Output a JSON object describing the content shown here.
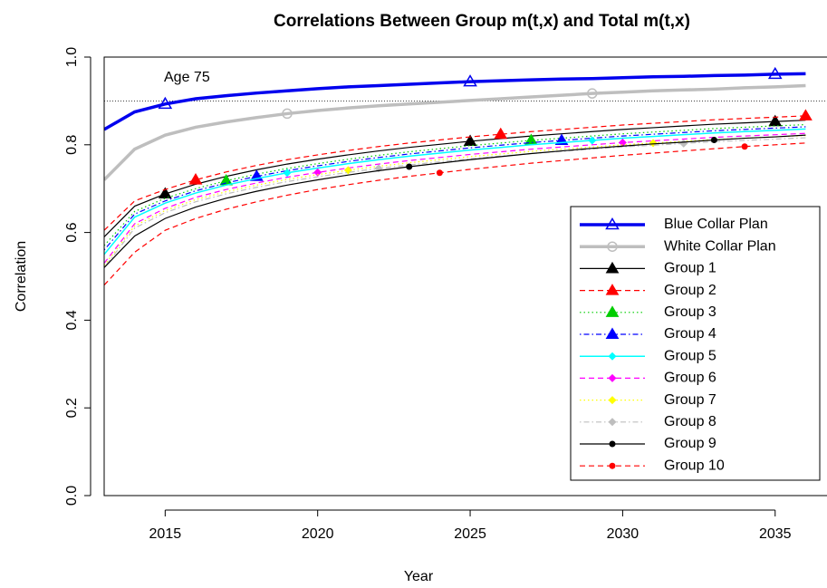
{
  "chart_data": {
    "type": "line",
    "title": "Correlations Between Group m(t,x) and Total m(t,x)",
    "x_label": "Year",
    "y_label": "Correlation",
    "annotation": "Age 75",
    "hline": 0.9,
    "x": [
      2013,
      2014,
      2015,
      2016,
      2017,
      2018,
      2019,
      2020,
      2021,
      2022,
      2023,
      2024,
      2025,
      2026,
      2027,
      2028,
      2029,
      2030,
      2031,
      2032,
      2033,
      2034,
      2035,
      2036
    ],
    "xlim": [
      2013,
      2036.7
    ],
    "ylim": [
      0,
      1
    ],
    "xticks": [
      2015,
      2020,
      2025,
      2030,
      2035
    ],
    "yticks": [
      {
        "value": 0,
        "label": "0.0"
      },
      {
        "value": 0.2,
        "label": "0.2"
      },
      {
        "value": 0.4,
        "label": "0.4"
      },
      {
        "value": 0.6,
        "label": "0.6"
      },
      {
        "value": 0.8,
        "label": "0.8"
      },
      {
        "value": 1,
        "label": "1.0"
      }
    ],
    "legend": "right",
    "series": [
      {
        "name": "Blue Collar Plan",
        "color": "#0000ee",
        "line_style": "solid",
        "line_width": 3.5,
        "marker": "triangle-open",
        "marker_x": [
          2015,
          2025,
          2035
        ],
        "values": [
          0.835,
          0.875,
          0.893,
          0.905,
          0.912,
          0.918,
          0.923,
          0.928,
          0.932,
          0.935,
          0.938,
          0.941,
          0.944,
          0.946,
          0.948,
          0.95,
          0.951,
          0.953,
          0.955,
          0.956,
          0.958,
          0.959,
          0.961,
          0.962
        ]
      },
      {
        "name": "White Collar Plan",
        "color": "#bebebe",
        "line_style": "solid",
        "line_width": 3.5,
        "marker": "circle-open",
        "marker_x": [
          2019,
          2029
        ],
        "values": [
          0.72,
          0.79,
          0.822,
          0.84,
          0.852,
          0.862,
          0.871,
          0.878,
          0.884,
          0.889,
          0.893,
          0.897,
          0.901,
          0.905,
          0.909,
          0.913,
          0.917,
          0.92,
          0.923,
          0.925,
          0.927,
          0.93,
          0.932,
          0.935
        ]
      },
      {
        "name": "Group 1",
        "color": "#000000",
        "line_style": "solid",
        "line_width": 1.2,
        "marker": "triangle",
        "marker_x": [
          2015,
          2025,
          2035
        ],
        "values": [
          0.59,
          0.66,
          0.688,
          0.71,
          0.728,
          0.743,
          0.756,
          0.767,
          0.777,
          0.786,
          0.794,
          0.801,
          0.808,
          0.814,
          0.82,
          0.825,
          0.83,
          0.835,
          0.839,
          0.843,
          0.847,
          0.85,
          0.853,
          0.856
        ]
      },
      {
        "name": "Group 2",
        "color": "#ff0000",
        "line_style": "dashed",
        "line_width": 1.2,
        "marker": "triangle",
        "marker_x": [
          2016,
          2026,
          2036
        ],
        "values": [
          0.605,
          0.672,
          0.698,
          0.72,
          0.738,
          0.753,
          0.766,
          0.777,
          0.787,
          0.796,
          0.804,
          0.811,
          0.818,
          0.824,
          0.83,
          0.835,
          0.84,
          0.845,
          0.849,
          0.853,
          0.857,
          0.86,
          0.863,
          0.866
        ]
      },
      {
        "name": "Group 3",
        "color": "#00cd00",
        "line_style": "dotted",
        "line_width": 1.2,
        "marker": "triangle",
        "marker_x": [
          2017,
          2027
        ],
        "values": [
          0.57,
          0.648,
          0.678,
          0.7,
          0.718,
          0.733,
          0.746,
          0.757,
          0.767,
          0.776,
          0.784,
          0.791,
          0.798,
          0.804,
          0.81,
          0.815,
          0.82,
          0.825,
          0.829,
          0.833,
          0.837,
          0.84,
          0.843,
          0.846
        ]
      },
      {
        "name": "Group 4",
        "color": "#0000ff",
        "line_style": "dotdash",
        "line_width": 1.2,
        "marker": "triangle",
        "marker_x": [
          2018,
          2028
        ],
        "values": [
          0.56,
          0.642,
          0.672,
          0.695,
          0.713,
          0.728,
          0.741,
          0.752,
          0.762,
          0.771,
          0.779,
          0.786,
          0.793,
          0.799,
          0.805,
          0.81,
          0.815,
          0.82,
          0.824,
          0.828,
          0.832,
          0.835,
          0.838,
          0.841
        ]
      },
      {
        "name": "Group 5",
        "color": "#00ffff",
        "line_style": "solid",
        "line_width": 1.5,
        "marker": "diamond",
        "marker_x": [
          2019,
          2029
        ],
        "values": [
          0.55,
          0.635,
          0.667,
          0.69,
          0.708,
          0.723,
          0.736,
          0.747,
          0.757,
          0.766,
          0.774,
          0.781,
          0.788,
          0.794,
          0.8,
          0.805,
          0.81,
          0.815,
          0.819,
          0.823,
          0.827,
          0.83,
          0.833,
          0.836
        ]
      },
      {
        "name": "Group 6",
        "color": "#ff00ff",
        "line_style": "dashed",
        "line_width": 1.2,
        "marker": "diamond",
        "marker_x": [
          2020,
          2030
        ],
        "values": [
          0.53,
          0.62,
          0.655,
          0.68,
          0.698,
          0.713,
          0.726,
          0.737,
          0.747,
          0.756,
          0.764,
          0.771,
          0.778,
          0.784,
          0.79,
          0.795,
          0.8,
          0.805,
          0.809,
          0.813,
          0.817,
          0.82,
          0.823,
          0.826
        ]
      },
      {
        "name": "Group 7",
        "color": "#ffff00",
        "line_style": "dotted",
        "line_width": 1.2,
        "marker": "diamond",
        "marker_x": [
          2021,
          2031
        ],
        "values": [
          0.525,
          0.615,
          0.65,
          0.675,
          0.693,
          0.708,
          0.721,
          0.732,
          0.742,
          0.751,
          0.759,
          0.766,
          0.773,
          0.779,
          0.785,
          0.79,
          0.795,
          0.8,
          0.804,
          0.808,
          0.812,
          0.815,
          0.818,
          0.821
        ]
      },
      {
        "name": "Group 8",
        "color": "#bebebe",
        "line_style": "dotdash",
        "line_width": 1.2,
        "marker": "diamond",
        "marker_x": [
          2022,
          2032
        ],
        "values": [
          0.52,
          0.61,
          0.645,
          0.67,
          0.688,
          0.703,
          0.716,
          0.727,
          0.737,
          0.746,
          0.754,
          0.761,
          0.768,
          0.774,
          0.78,
          0.785,
          0.79,
          0.795,
          0.799,
          0.803,
          0.807,
          0.81,
          0.813,
          0.816
        ]
      },
      {
        "name": "Group 9",
        "color": "#000000",
        "line_style": "solid",
        "line_width": 1.2,
        "marker": "dot",
        "marker_x": [
          2023,
          2033
        ],
        "values": [
          0.52,
          0.592,
          0.632,
          0.658,
          0.678,
          0.694,
          0.708,
          0.72,
          0.731,
          0.741,
          0.75,
          0.758,
          0.766,
          0.773,
          0.78,
          0.786,
          0.792,
          0.797,
          0.802,
          0.806,
          0.811,
          0.815,
          0.818,
          0.822
        ]
      },
      {
        "name": "Group 10",
        "color": "#ff0000",
        "line_style": "dashed",
        "line_width": 1.2,
        "marker": "dot",
        "marker_x": [
          2024,
          2034
        ],
        "values": [
          0.48,
          0.555,
          0.605,
          0.632,
          0.653,
          0.67,
          0.685,
          0.698,
          0.709,
          0.719,
          0.728,
          0.736,
          0.744,
          0.751,
          0.758,
          0.764,
          0.77,
          0.776,
          0.781,
          0.786,
          0.791,
          0.796,
          0.8,
          0.804
        ]
      }
    ]
  }
}
